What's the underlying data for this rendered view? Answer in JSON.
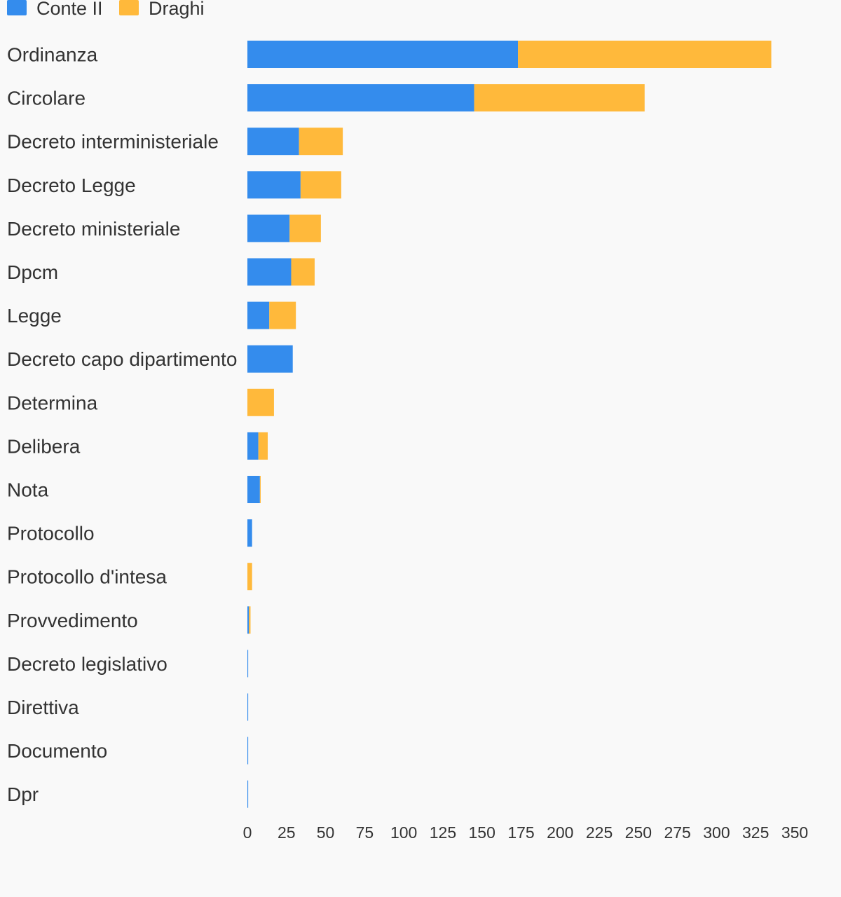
{
  "chart_data": {
    "type": "bar",
    "orientation": "horizontal",
    "stacked": true,
    "categories": [
      "Ordinanza",
      "Circolare",
      "Decreto interministeriale",
      "Decreto Legge",
      "Decreto ministeriale",
      "Dpcm",
      "Legge",
      "Decreto capo dipartimento",
      "Determina",
      "Delibera",
      "Nota",
      "Protocollo",
      "Protocollo d'intesa",
      "Provvedimento",
      "Decreto legislativo",
      "Direttiva",
      "Documento",
      "Dpr"
    ],
    "series": [
      {
        "name": "Conte II",
        "color": "#348ced",
        "values": [
          173,
          145,
          33,
          34,
          27,
          28,
          14,
          29,
          0,
          7,
          8,
          3,
          0,
          1,
          0.5,
          0.5,
          0.5,
          0.5
        ]
      },
      {
        "name": "Draghi",
        "color": "#ffb93b",
        "values": [
          162,
          109,
          28,
          26,
          20,
          15,
          17,
          0,
          17,
          6,
          0.5,
          0,
          3,
          1,
          0,
          0,
          0,
          0
        ]
      }
    ],
    "xlim": [
      0,
      350
    ],
    "xticks": [
      "0",
      "25",
      "50",
      "75",
      "100",
      "125",
      "150",
      "175",
      "200",
      "225",
      "250",
      "275",
      "300",
      "325",
      "350"
    ],
    "legend_position": "top-left",
    "grid": false
  }
}
